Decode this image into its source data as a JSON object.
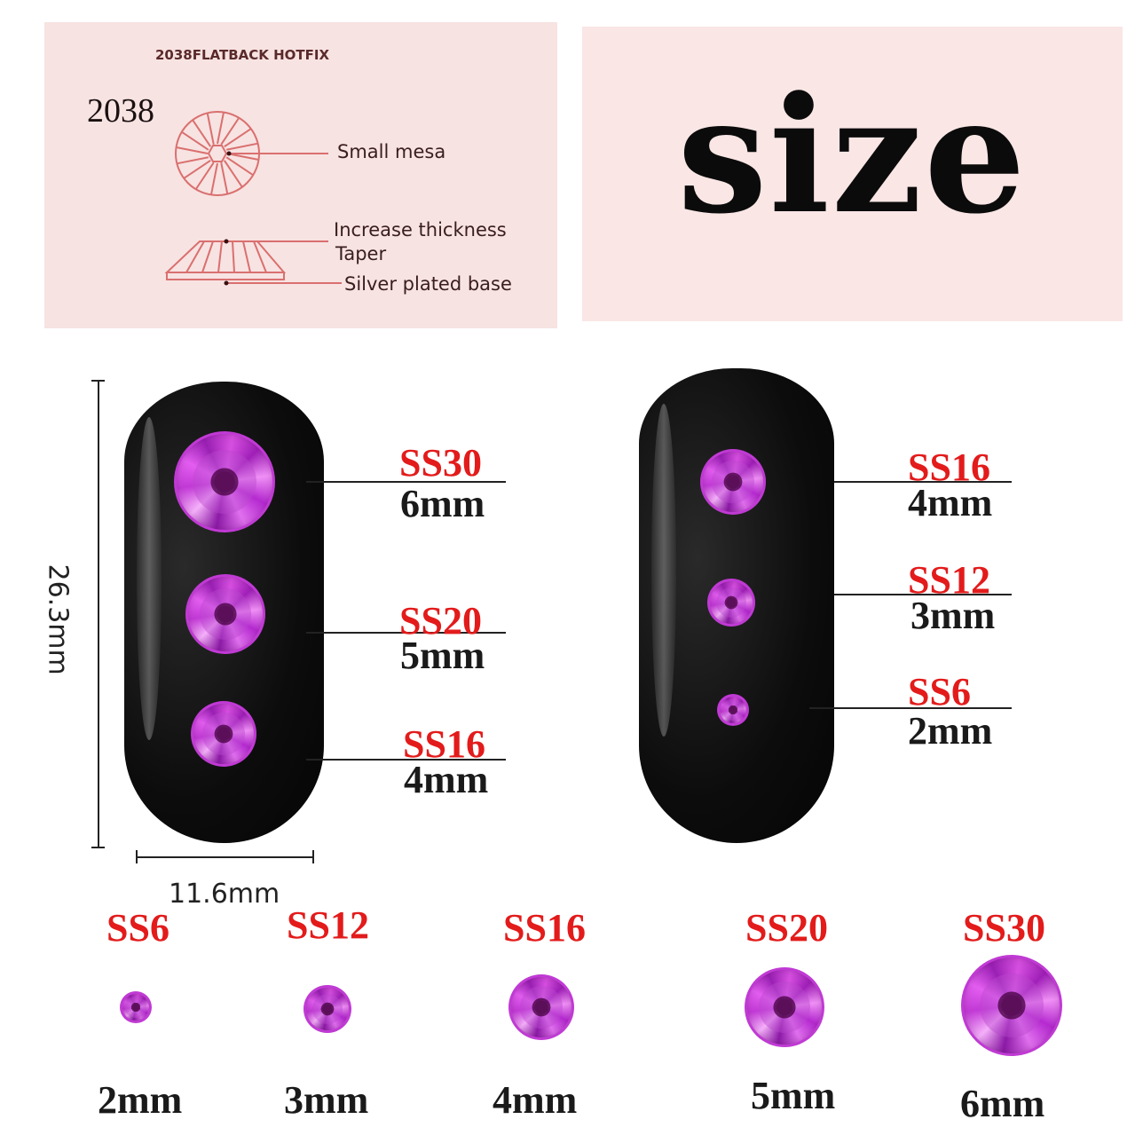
{
  "diagram_panel": {
    "heading": "2038FLATBACK HOTFIX",
    "model": "2038",
    "callouts": [
      "Small mesa",
      "Increase thickness",
      "Taper",
      "Silver plated base"
    ],
    "line_color": "#d9706f"
  },
  "title_panel": {
    "title": "size"
  },
  "dimensions": {
    "height": "26.3mm",
    "width": "11.6mm"
  },
  "left_nail": [
    {
      "code": "SS30",
      "size": "6mm"
    },
    {
      "code": "SS20",
      "size": "5mm"
    },
    {
      "code": "SS16",
      "size": "4mm"
    }
  ],
  "right_nail": [
    {
      "code": "SS16",
      "size": "4mm"
    },
    {
      "code": "SS12",
      "size": "3mm"
    },
    {
      "code": "SS6",
      "size": "2mm"
    }
  ],
  "size_row": [
    {
      "code": "SS6",
      "size": "2mm"
    },
    {
      "code": "SS12",
      "size": "3mm"
    },
    {
      "code": "SS16",
      "size": "4mm"
    },
    {
      "code": "SS20",
      "size": "5mm"
    },
    {
      "code": "SS30",
      "size": "6mm"
    }
  ],
  "colors": {
    "code_label": "#e31b1b",
    "gem": "#c23ad6",
    "nail": "#0c0c0c"
  }
}
